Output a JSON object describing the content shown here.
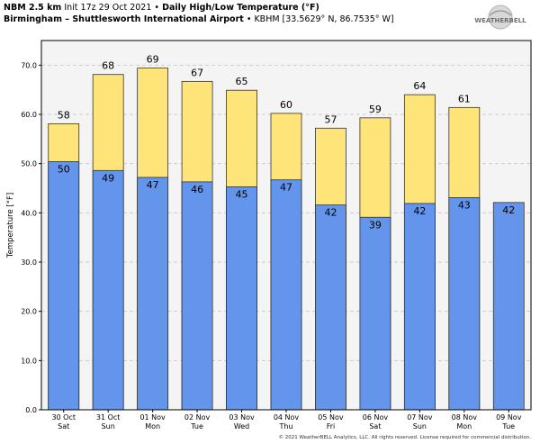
{
  "header": {
    "model": "NBM 2.5 km",
    "init": "Init 17z 29 Oct 2021",
    "sep": "•",
    "product": "Daily High/Low Temperature (°F)",
    "station": "Birmingham – Shuttlesworth International Airport",
    "station_code": "• KBHM [33.5629° N, 86.7535° W]"
  },
  "logo": {
    "text": "WEATHERBELL"
  },
  "copyright": "© 2021 WeatherBELL Analytics, LLC. All rights reserved. License required for commercial distribution.",
  "colors": {
    "high": "#FFE47A",
    "low": "#6495ED",
    "grid": "#cccccc",
    "plot_bg": "#f4f4f4"
  },
  "chart_data": {
    "type": "bar",
    "title": "Daily High/Low Temperature (°F)",
    "ylabel": "Temperature [°F]",
    "ylim": [
      0,
      75
    ],
    "yticks": [
      "0.0",
      "10.0",
      "20.0",
      "30.0",
      "40.0",
      "50.0",
      "60.0",
      "70.0"
    ],
    "grid": true,
    "categories": [
      {
        "date": "30 Oct",
        "day": "Sat"
      },
      {
        "date": "31 Oct",
        "day": "Sun"
      },
      {
        "date": "01 Nov",
        "day": "Mon"
      },
      {
        "date": "02 Nov",
        "day": "Tue"
      },
      {
        "date": "03 Nov",
        "day": "Wed"
      },
      {
        "date": "04 Nov",
        "day": "Thu"
      },
      {
        "date": "05 Nov",
        "day": "Fri"
      },
      {
        "date": "06 Nov",
        "day": "Sat"
      },
      {
        "date": "07 Nov",
        "day": "Sun"
      },
      {
        "date": "08 Nov",
        "day": "Mon"
      },
      {
        "date": "09 Nov",
        "day": "Tue"
      }
    ],
    "series": [
      {
        "name": "High",
        "values": [
          58.1,
          68.1,
          69.4,
          66.7,
          64.9,
          60.2,
          57.2,
          59.3,
          64.0,
          61.4,
          null
        ],
        "labels": [
          "58",
          "68",
          "69",
          "67",
          "65",
          "60",
          "57",
          "59",
          "64",
          "61",
          ""
        ]
      },
      {
        "name": "Low",
        "values": [
          50.4,
          48.6,
          47.2,
          46.3,
          45.3,
          46.7,
          41.6,
          39.1,
          41.9,
          43.1,
          42.1
        ],
        "labels": [
          "50",
          "49",
          "47",
          "46",
          "45",
          "47",
          "42",
          "39",
          "42",
          "43",
          "42"
        ]
      }
    ]
  }
}
